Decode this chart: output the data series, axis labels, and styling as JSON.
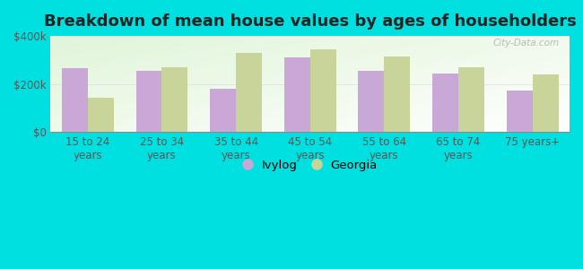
{
  "title": "Breakdown of mean house values by ages of householders",
  "categories": [
    "15 to 24\nyears",
    "25 to 34\nyears",
    "35 to 44\nyears",
    "45 to 54\nyears",
    "55 to 64\nyears",
    "65 to 74\nyears",
    "75 years+"
  ],
  "ivylog_values": [
    265000,
    255000,
    180000,
    310000,
    255000,
    245000,
    175000
  ],
  "georgia_values": [
    145000,
    270000,
    330000,
    345000,
    315000,
    270000,
    240000
  ],
  "ivylog_color": "#c9a8d8",
  "georgia_color": "#c8d49a",
  "outer_background": "#00e0e0",
  "ylim": [
    0,
    400000
  ],
  "yticks": [
    0,
    200000,
    400000
  ],
  "ytick_labels": [
    "$0",
    "$200k",
    "$400k"
  ],
  "legend_labels": [
    "Ivylog",
    "Georgia"
  ],
  "watermark": "City-Data.com",
  "bar_width": 0.35,
  "title_fontsize": 13,
  "tick_fontsize": 8.5,
  "legend_fontsize": 9.5
}
